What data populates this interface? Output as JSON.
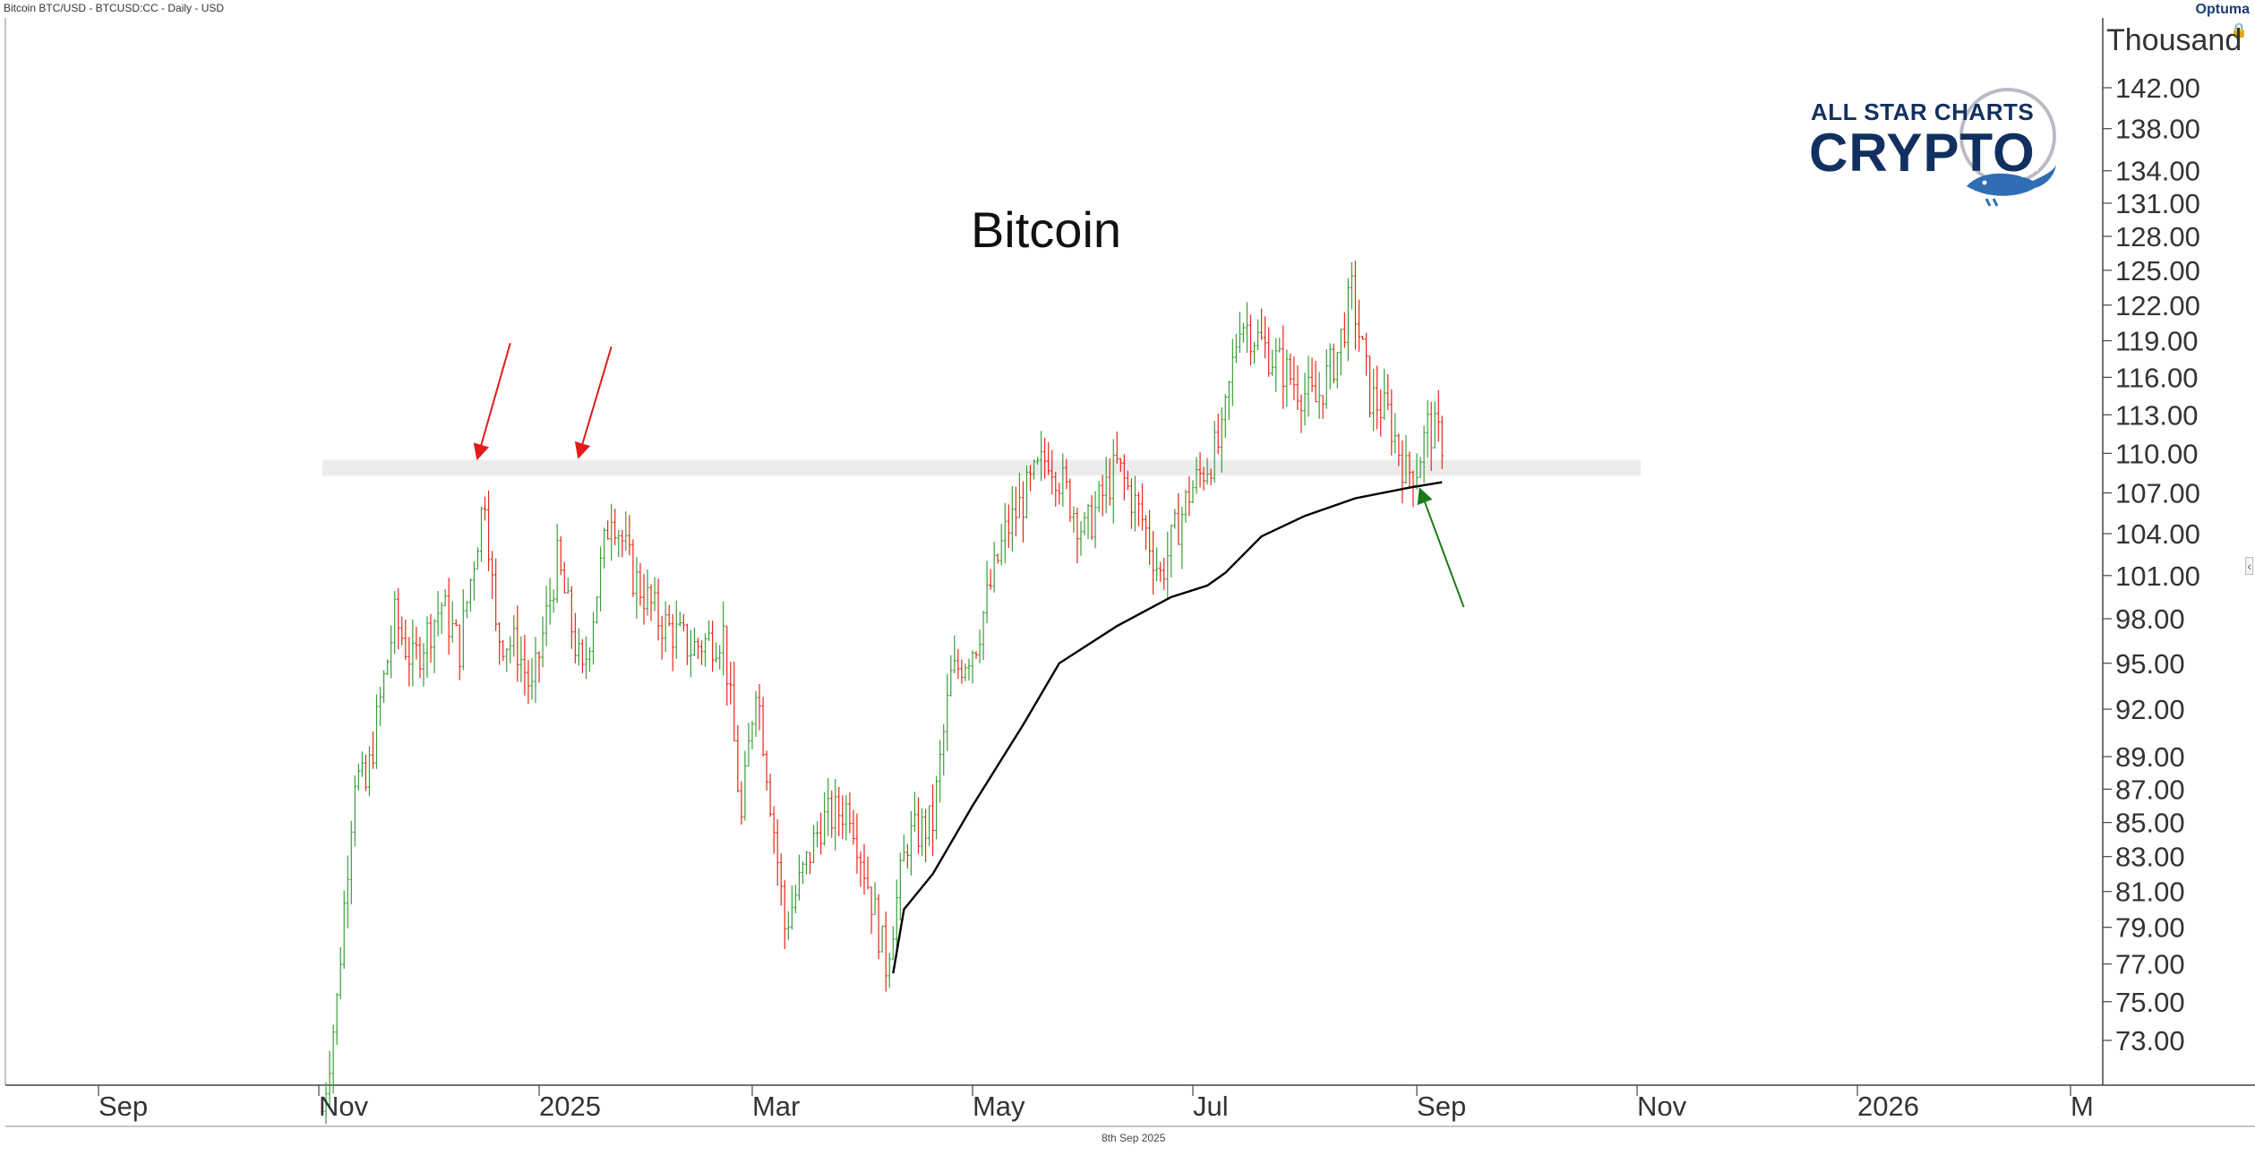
{
  "header": {
    "title": "Bitcoin BTC/USD - BTCUSD:CC - Daily - USD",
    "optuma_logo": "Optuma",
    "lock_icon": "lock-icon"
  },
  "brand": {
    "line1": "ALL STAR CHARTS",
    "line2": "CRYPTO",
    "accent": "#2f6db5",
    "dark": "#12305f"
  },
  "footer": {
    "date": "8th Sep 2025"
  },
  "chart_data": {
    "type": "candlestick",
    "title": "Bitcoin",
    "axis_unit_label": "Thousand",
    "y_scale": "log",
    "ylim": [
      71,
      148
    ],
    "y_ticks": [
      73,
      75,
      77,
      79,
      81,
      83,
      85,
      87,
      89,
      92,
      95,
      98,
      101,
      104,
      107,
      110,
      113,
      116,
      119,
      122,
      125,
      128,
      131,
      134,
      138,
      142
    ],
    "x_ticks": [
      "Sep",
      "Nov",
      "2025",
      "Mar",
      "May",
      "Jul",
      "Sep",
      "Nov",
      "2026",
      "M"
    ],
    "xlim": [
      "2024-08-01",
      "2026-03-20"
    ],
    "x_tick_dates": [
      "2024-09-01",
      "2024-11-01",
      "2025-01-01",
      "2025-03-01",
      "2025-05-01",
      "2025-07-01",
      "2025-09-01",
      "2025-11-01",
      "2026-01-01",
      "2026-03-01"
    ],
    "colors": {
      "up": "#3a9e3a",
      "down": "#e8261a",
      "ma": "#000000",
      "zone": "#ececec",
      "resistance_arrow": "#e31b1b",
      "support_arrow": "#1a7a1a"
    },
    "price_path": [
      [
        "2024-11-02",
        69.5
      ],
      [
        "2024-11-06",
        75
      ],
      [
        "2024-11-11",
        88
      ],
      [
        "2024-11-14",
        87
      ],
      [
        "2024-11-22",
        98
      ],
      [
        "2024-11-27",
        95
      ],
      [
        "2024-12-05",
        99
      ],
      [
        "2024-12-10",
        96
      ],
      [
        "2024-12-17",
        107
      ],
      [
        "2024-12-20",
        97
      ],
      [
        "2024-12-26",
        96
      ],
      [
        "2024-12-30",
        93
      ],
      [
        "2025-01-06",
        102
      ],
      [
        "2025-01-13",
        94
      ],
      [
        "2025-01-21",
        106
      ],
      [
        "2025-01-27",
        101
      ],
      [
        "2025-02-03",
        98
      ],
      [
        "2025-02-12",
        96
      ],
      [
        "2025-02-21",
        97
      ],
      [
        "2025-02-26",
        85
      ],
      [
        "2025-03-02",
        94
      ],
      [
        "2025-03-10",
        79
      ],
      [
        "2025-03-20",
        85
      ],
      [
        "2025-03-28",
        86
      ],
      [
        "2025-04-07",
        77
      ],
      [
        "2025-04-13",
        84
      ],
      [
        "2025-04-20",
        85
      ],
      [
        "2025-04-25",
        94
      ],
      [
        "2025-05-02",
        96.5
      ],
      [
        "2025-05-10",
        104
      ],
      [
        "2025-05-22",
        110
      ],
      [
        "2025-06-01",
        104
      ],
      [
        "2025-06-10",
        109
      ],
      [
        "2025-06-17",
        105
      ],
      [
        "2025-06-22",
        101
      ],
      [
        "2025-06-30",
        107
      ],
      [
        "2025-07-09",
        111
      ],
      [
        "2025-07-14",
        121
      ],
      [
        "2025-07-22",
        118
      ],
      [
        "2025-07-31",
        115
      ],
      [
        "2025-08-04",
        114
      ],
      [
        "2025-08-10",
        118
      ],
      [
        "2025-08-14",
        123
      ],
      [
        "2025-08-19",
        114.5
      ],
      [
        "2025-08-24",
        113
      ],
      [
        "2025-08-29",
        108.5
      ],
      [
        "2025-09-01",
        109
      ],
      [
        "2025-09-04",
        112
      ],
      [
        "2025-09-08",
        111
      ]
    ],
    "moving_average": [
      [
        "2025-04-09",
        76.5
      ],
      [
        "2025-04-12",
        80
      ],
      [
        "2025-04-20",
        82
      ],
      [
        "2025-05-01",
        86
      ],
      [
        "2025-05-15",
        91
      ],
      [
        "2025-05-25",
        95
      ],
      [
        "2025-06-10",
        97.5
      ],
      [
        "2025-06-25",
        99.5
      ],
      [
        "2025-07-05",
        100.3
      ],
      [
        "2025-07-10",
        101.2
      ],
      [
        "2025-07-20",
        103.8
      ],
      [
        "2025-08-01",
        105.3
      ],
      [
        "2025-08-15",
        106.6
      ],
      [
        "2025-08-30",
        107.4
      ],
      [
        "2025-09-08",
        107.8
      ]
    ],
    "resistance_zone": {
      "from": "2024-11-01",
      "to": "2025-11-01",
      "low": 108.3,
      "high": 109.5
    },
    "arrows": [
      {
        "name": "resistance-arrow-dec",
        "color": "red",
        "from": [
          "2024-12-24",
          118.8
        ],
        "to": [
          "2024-12-15",
          109.7
        ]
      },
      {
        "name": "resistance-arrow-jan",
        "color": "red",
        "from": [
          "2025-01-21",
          118.5
        ],
        "to": [
          "2025-01-12",
          109.8
        ]
      },
      {
        "name": "support-arrow-sep",
        "color": "green",
        "from": [
          "2025-09-14",
          98.8
        ],
        "to": [
          "2025-09-02",
          107.2
        ]
      }
    ]
  }
}
